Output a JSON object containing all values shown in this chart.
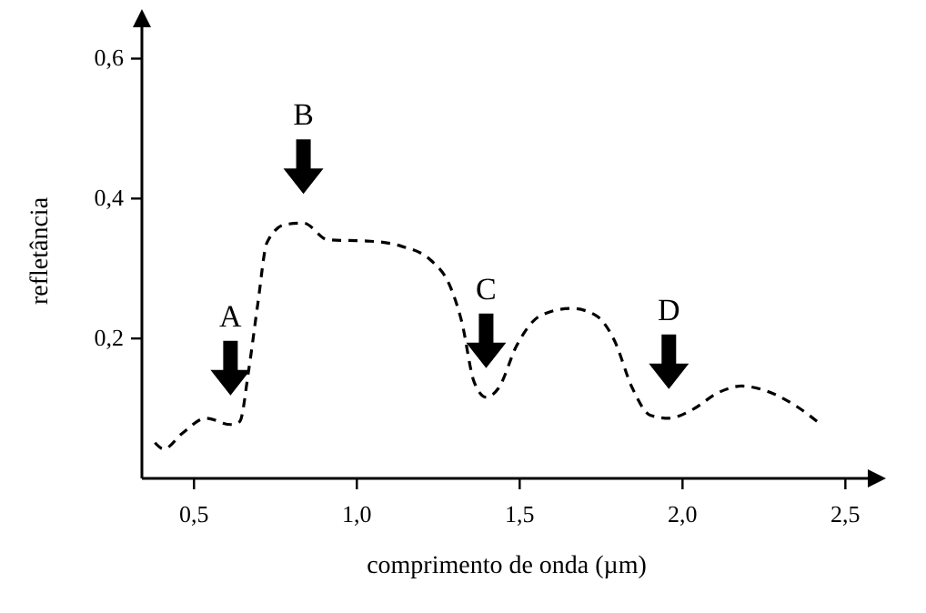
{
  "chart_data": {
    "type": "line",
    "xlabel": "comprimento de onda (µm)",
    "ylabel": "refletância",
    "xlim": [
      0.34,
      2.58
    ],
    "ylim": [
      0,
      0.65
    ],
    "xticks": [
      {
        "value": 0.5,
        "label": "0,5"
      },
      {
        "value": 1.0,
        "label": "1,0"
      },
      {
        "value": 1.5,
        "label": "1,5"
      },
      {
        "value": 2.0,
        "label": "2,0"
      },
      {
        "value": 2.5,
        "label": "2,5"
      }
    ],
    "yticks": [
      {
        "value": 0.2,
        "label": "0,2"
      },
      {
        "value": 0.4,
        "label": "0,4"
      },
      {
        "value": 0.6,
        "label": "0,6"
      }
    ],
    "grid": false,
    "marker": "none",
    "line_style": "dashed",
    "series": [
      {
        "color": "#000000",
        "x": [
          0.38,
          0.407,
          0.463,
          0.537,
          0.612,
          0.64,
          0.668,
          0.696,
          0.724,
          0.78,
          0.836,
          0.911,
          1.042,
          1.136,
          1.229,
          1.285,
          1.322,
          1.36,
          1.397,
          1.435,
          1.491,
          1.565,
          1.659,
          1.734,
          1.79,
          1.846,
          1.902,
          1.958,
          2.033,
          2.107,
          2.182,
          2.257,
          2.35,
          2.425
        ],
        "values": [
          0.051,
          0.042,
          0.064,
          0.086,
          0.077,
          0.081,
          0.155,
          0.25,
          0.337,
          0.363,
          0.365,
          0.341,
          0.339,
          0.332,
          0.311,
          0.276,
          0.224,
          0.138,
          0.116,
          0.129,
          0.19,
          0.233,
          0.243,
          0.233,
          0.198,
          0.129,
          0.09,
          0.086,
          0.099,
          0.122,
          0.132,
          0.125,
          0.103,
          0.077
        ]
      }
    ],
    "annotations": [
      {
        "text": "A",
        "x": 0.612,
        "y": 0.077
      },
      {
        "text": "B",
        "x": 0.836,
        "y": 0.365
      },
      {
        "text": "C",
        "x": 1.397,
        "y": 0.116
      },
      {
        "text": "D",
        "x": 1.958,
        "y": 0.086
      }
    ]
  }
}
